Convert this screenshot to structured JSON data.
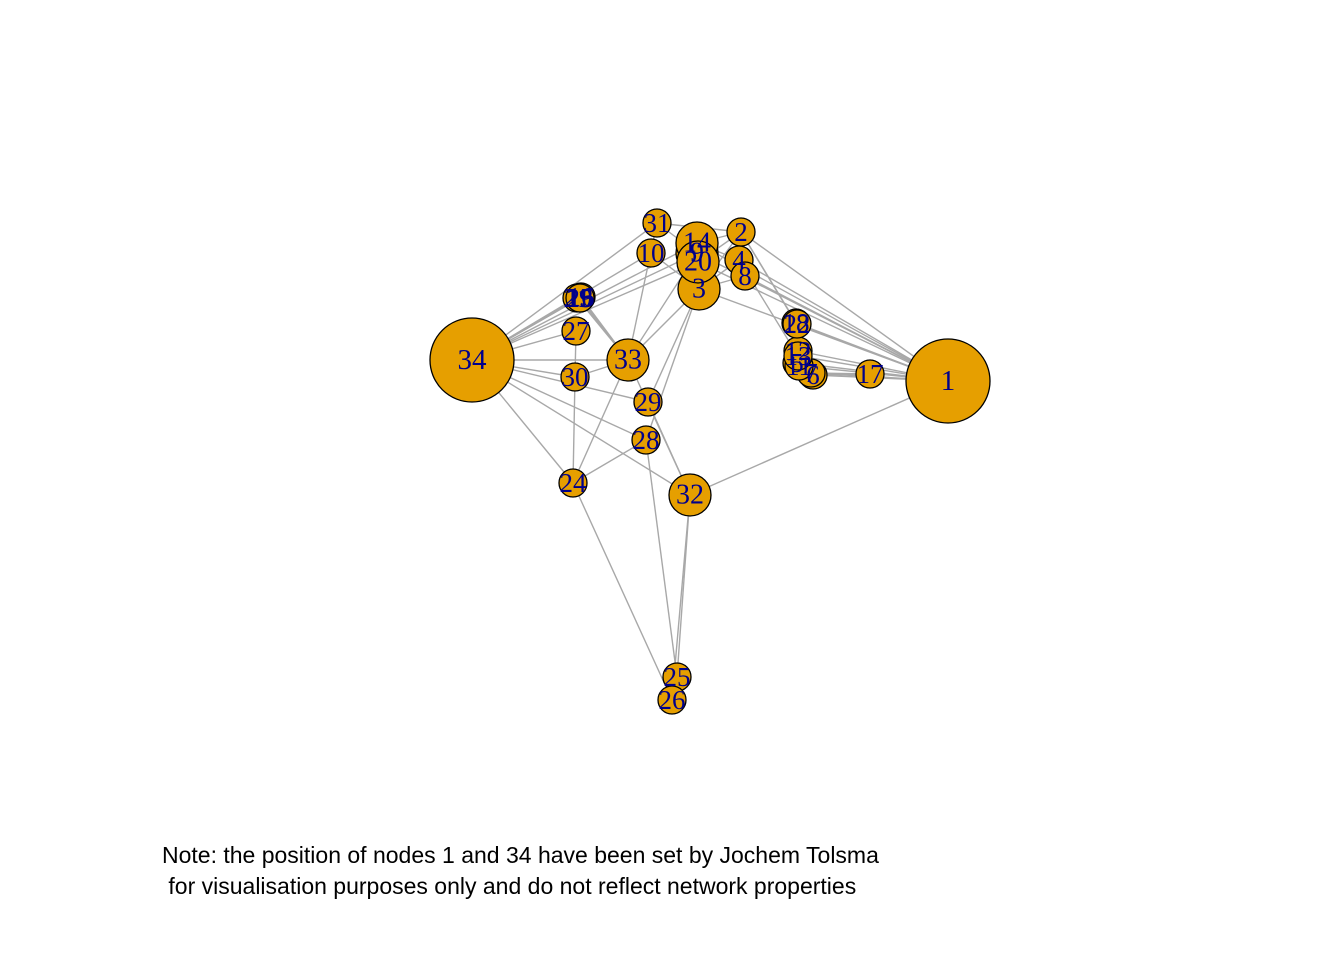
{
  "colors": {
    "node_fill": "#e69f00",
    "node_border": "#000000",
    "label": "#00008b",
    "edge": "#a8a8a8"
  },
  "note": {
    "line1": "Note: the position of nodes 1 and 34 have been set by Jochem Tolsma",
    "line2": " for visualisation purposes only and do not reflect network properties"
  },
  "nodes": [
    {
      "id": "1",
      "label": "1",
      "size": "large"
    },
    {
      "id": "2",
      "label": "2",
      "size": "small"
    },
    {
      "id": "3",
      "label": "3",
      "size": "medium"
    },
    {
      "id": "4",
      "label": "4",
      "size": "small"
    },
    {
      "id": "5",
      "label": "5",
      "size": "small"
    },
    {
      "id": "6",
      "label": "6",
      "size": "small"
    },
    {
      "id": "7",
      "label": "7",
      "size": "small"
    },
    {
      "id": "8",
      "label": "8",
      "size": "small"
    },
    {
      "id": "9",
      "label": "9",
      "size": "medium"
    },
    {
      "id": "10",
      "label": "10",
      "size": "small"
    },
    {
      "id": "11",
      "label": "11",
      "size": "small"
    },
    {
      "id": "12",
      "label": "12",
      "size": "small"
    },
    {
      "id": "13",
      "label": "13",
      "size": "small"
    },
    {
      "id": "14",
      "label": "14",
      "size": "medium"
    },
    {
      "id": "15",
      "label": "15",
      "size": "small"
    },
    {
      "id": "16",
      "label": "16",
      "size": "small"
    },
    {
      "id": "17",
      "label": "17",
      "size": "small"
    },
    {
      "id": "18",
      "label": "18",
      "size": "small"
    },
    {
      "id": "19",
      "label": "19",
      "size": "small"
    },
    {
      "id": "20",
      "label": "20",
      "size": "medium"
    },
    {
      "id": "21",
      "label": "21",
      "size": "small"
    },
    {
      "id": "22",
      "label": "22",
      "size": "small"
    },
    {
      "id": "23",
      "label": "23",
      "size": "small"
    },
    {
      "id": "24",
      "label": "24",
      "size": "small"
    },
    {
      "id": "25",
      "label": "25",
      "size": "small"
    },
    {
      "id": "26",
      "label": "26",
      "size": "small"
    },
    {
      "id": "27",
      "label": "27",
      "size": "small"
    },
    {
      "id": "28",
      "label": "28",
      "size": "small"
    },
    {
      "id": "29",
      "label": "29",
      "size": "small"
    },
    {
      "id": "30",
      "label": "30",
      "size": "small"
    },
    {
      "id": "31",
      "label": "31",
      "size": "small"
    },
    {
      "id": "32",
      "label": "32",
      "size": "medium"
    },
    {
      "id": "33",
      "label": "33",
      "size": "medium"
    },
    {
      "id": "34",
      "label": "34",
      "size": "large"
    }
  ],
  "edges": [
    [
      "1",
      "2"
    ],
    [
      "1",
      "3"
    ],
    [
      "1",
      "4"
    ],
    [
      "1",
      "5"
    ],
    [
      "1",
      "6"
    ],
    [
      "1",
      "7"
    ],
    [
      "1",
      "8"
    ],
    [
      "1",
      "9"
    ],
    [
      "1",
      "11"
    ],
    [
      "1",
      "12"
    ],
    [
      "1",
      "13"
    ],
    [
      "1",
      "14"
    ],
    [
      "1",
      "18"
    ],
    [
      "1",
      "20"
    ],
    [
      "1",
      "22"
    ],
    [
      "1",
      "32"
    ],
    [
      "2",
      "3"
    ],
    [
      "2",
      "4"
    ],
    [
      "2",
      "8"
    ],
    [
      "2",
      "14"
    ],
    [
      "2",
      "18"
    ],
    [
      "2",
      "20"
    ],
    [
      "2",
      "22"
    ],
    [
      "2",
      "31"
    ],
    [
      "3",
      "4"
    ],
    [
      "3",
      "8"
    ],
    [
      "3",
      "9"
    ],
    [
      "3",
      "10"
    ],
    [
      "3",
      "14"
    ],
    [
      "3",
      "28"
    ],
    [
      "3",
      "29"
    ],
    [
      "3",
      "33"
    ],
    [
      "4",
      "8"
    ],
    [
      "4",
      "13"
    ],
    [
      "4",
      "14"
    ],
    [
      "5",
      "7"
    ],
    [
      "5",
      "11"
    ],
    [
      "6",
      "7"
    ],
    [
      "6",
      "11"
    ],
    [
      "6",
      "17"
    ],
    [
      "7",
      "17"
    ],
    [
      "9",
      "31"
    ],
    [
      "9",
      "33"
    ],
    [
      "9",
      "34"
    ],
    [
      "10",
      "34"
    ],
    [
      "14",
      "34"
    ],
    [
      "15",
      "33"
    ],
    [
      "15",
      "34"
    ],
    [
      "16",
      "33"
    ],
    [
      "16",
      "34"
    ],
    [
      "19",
      "33"
    ],
    [
      "19",
      "34"
    ],
    [
      "20",
      "34"
    ],
    [
      "21",
      "33"
    ],
    [
      "21",
      "34"
    ],
    [
      "23",
      "33"
    ],
    [
      "23",
      "34"
    ],
    [
      "24",
      "26"
    ],
    [
      "24",
      "28"
    ],
    [
      "24",
      "30"
    ],
    [
      "24",
      "33"
    ],
    [
      "24",
      "34"
    ],
    [
      "25",
      "26"
    ],
    [
      "25",
      "28"
    ],
    [
      "25",
      "32"
    ],
    [
      "26",
      "32"
    ],
    [
      "27",
      "30"
    ],
    [
      "27",
      "34"
    ],
    [
      "28",
      "34"
    ],
    [
      "29",
      "32"
    ],
    [
      "29",
      "34"
    ],
    [
      "30",
      "33"
    ],
    [
      "30",
      "34"
    ],
    [
      "31",
      "33"
    ],
    [
      "31",
      "34"
    ],
    [
      "32",
      "33"
    ],
    [
      "32",
      "34"
    ],
    [
      "33",
      "34"
    ]
  ]
}
